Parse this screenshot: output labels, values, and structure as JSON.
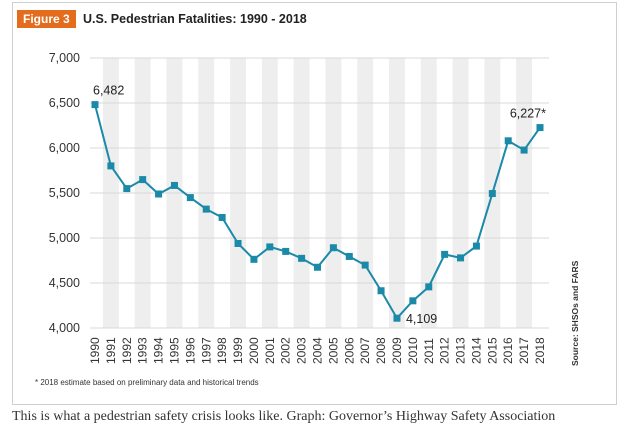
{
  "figure": {
    "badge": "Figure 3",
    "title": "U.S. Pedestrian Fatalities: 1990 - 2018",
    "source": "Source: SHSOs and FARS",
    "footnote": "* 2018 estimate based on preliminary data and historical trends"
  },
  "caption": "This is what a pedestrian safety crisis looks like. Graph: Governor’s Highway Safety Association",
  "colors": {
    "badge": "#e36c1d",
    "line": "#1a8aa8",
    "band": "#eeeeee",
    "grid": "#d8d8d8"
  },
  "chart_data": {
    "type": "line",
    "x": [
      1990,
      1991,
      1992,
      1993,
      1994,
      1995,
      1996,
      1997,
      1998,
      1999,
      2000,
      2001,
      2002,
      2003,
      2004,
      2005,
      2006,
      2007,
      2008,
      2009,
      2010,
      2011,
      2012,
      2013,
      2014,
      2015,
      2016,
      2017,
      2018
    ],
    "y": [
      6482,
      5801,
      5549,
      5649,
      5489,
      5584,
      5449,
      5321,
      5228,
      4939,
      4763,
      4901,
      4851,
      4774,
      4675,
      4892,
      4795,
      4699,
      4414,
      4109,
      4302,
      4457,
      4818,
      4779,
      4910,
      5494,
      6080,
      5977,
      6227
    ],
    "ylim": [
      4000,
      7000
    ],
    "yticks": [
      "4,000",
      "4,500",
      "5,000",
      "5,500",
      "6,000",
      "6,500",
      "7,000"
    ],
    "annotations": [
      {
        "x": 1990,
        "text": "6,482",
        "position": "above"
      },
      {
        "x": 2009,
        "text": "4,109",
        "position": "right"
      },
      {
        "x": 2018,
        "text": "6,227*",
        "position": "above-left"
      }
    ],
    "grid": "horizontal",
    "legend": "none"
  }
}
